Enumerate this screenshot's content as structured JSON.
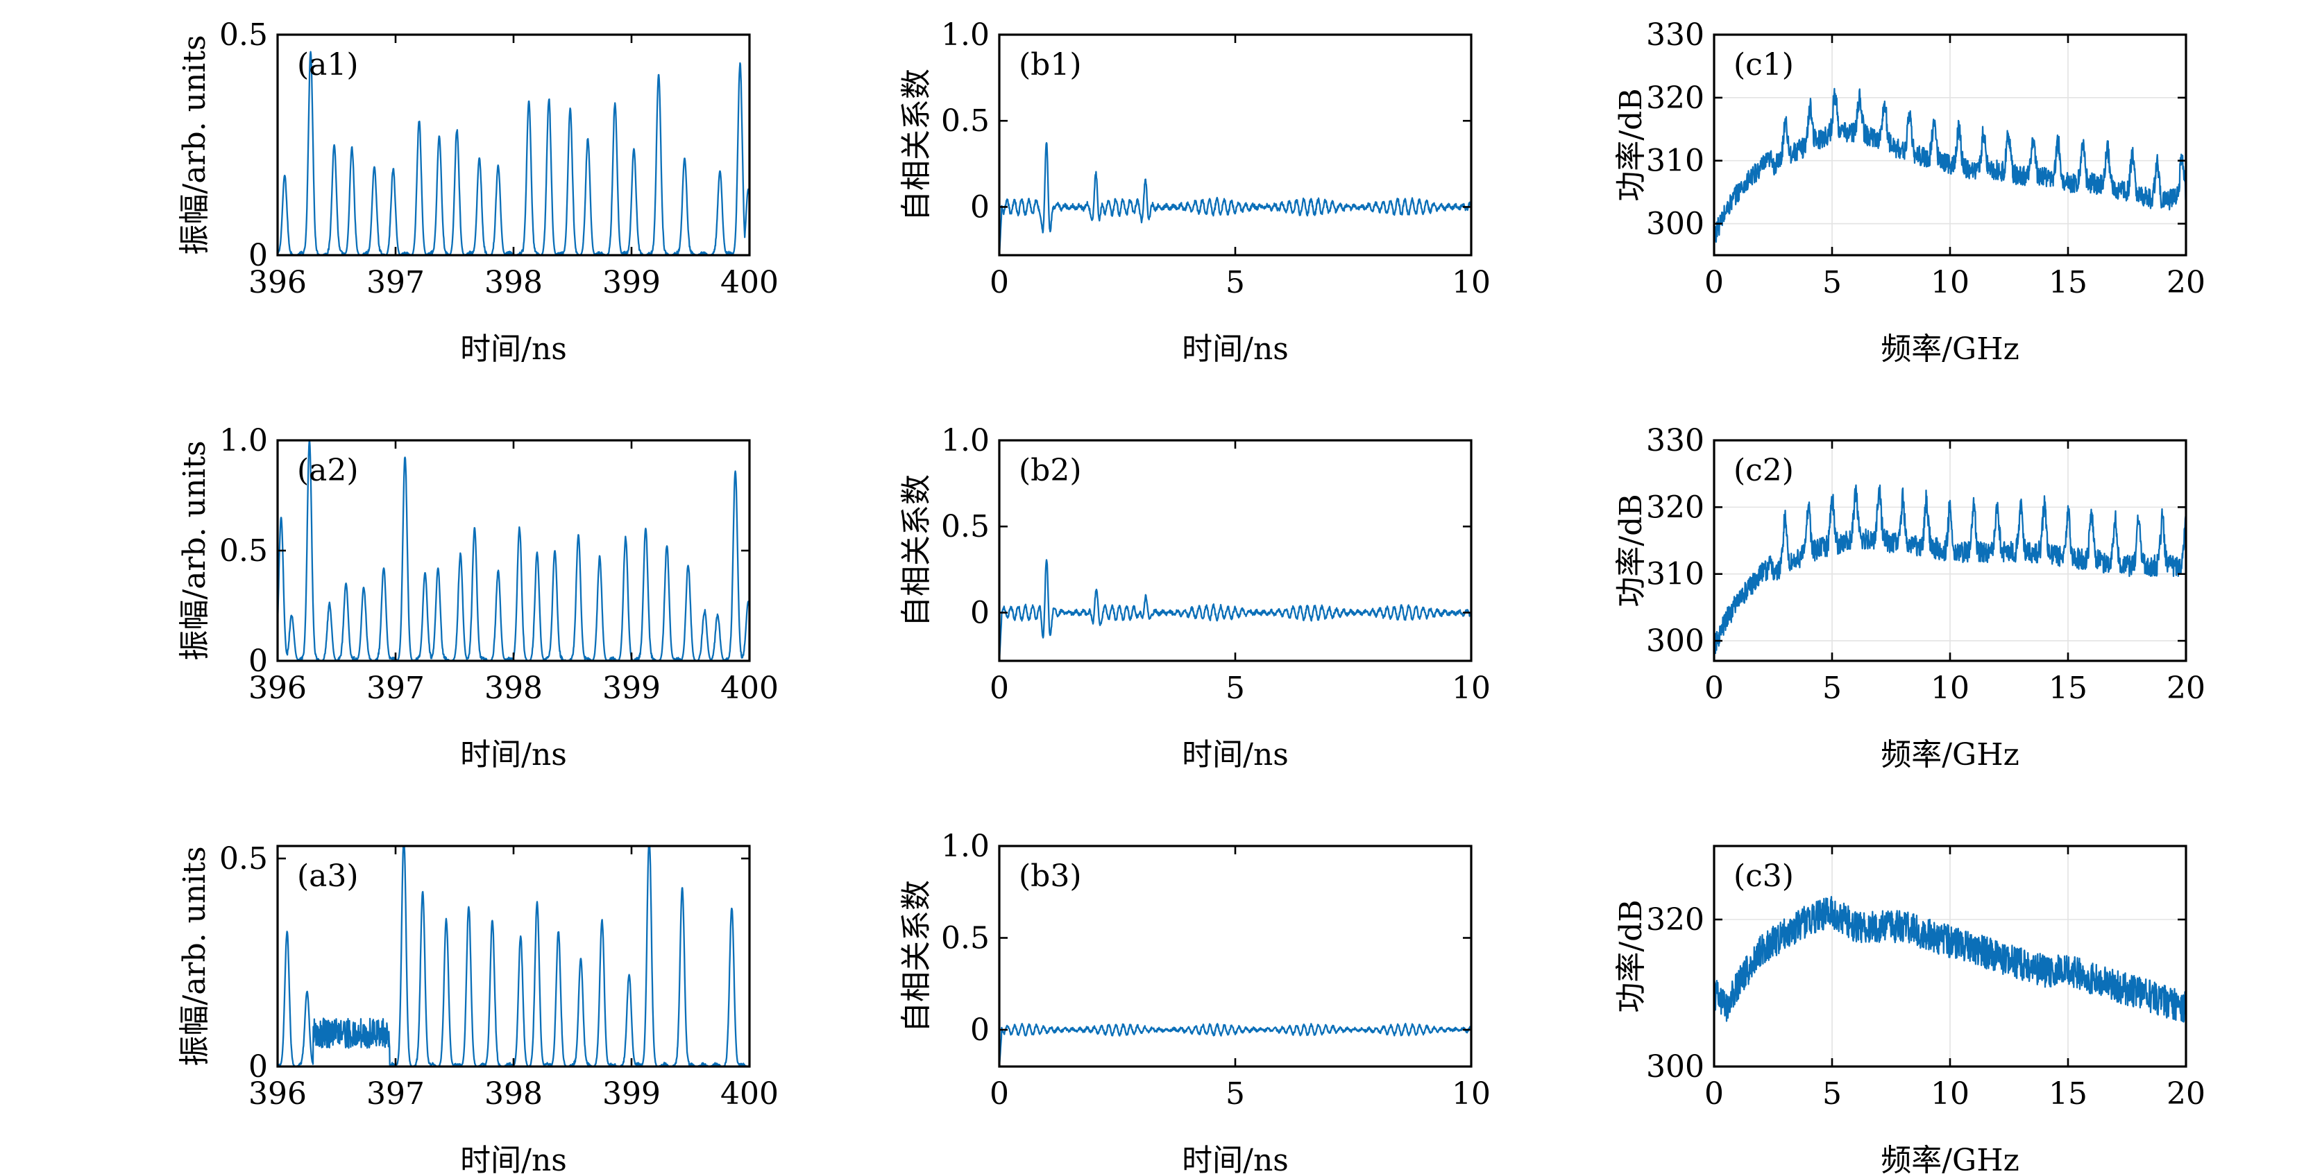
{
  "colors": {
    "trace": "#0b6fb8",
    "frame": "#000000",
    "grid": "#e3e3e3"
  },
  "chart_data": [
    {
      "id": "a1",
      "type": "line",
      "label": "(a1)",
      "xlabel": "时间/ns",
      "ylabel": "振幅/arb. units",
      "xlim": [
        396,
        400
      ],
      "ylim": [
        0,
        0.5
      ],
      "xticks": [
        "396",
        "397",
        "398",
        "399",
        "400"
      ],
      "yticks": [
        "0",
        "0.5"
      ],
      "grid": false,
      "trace_kind": "pulses",
      "series": [
        {
          "peaks_x": [
            396.06,
            396.28,
            396.48,
            396.63,
            396.82,
            396.98,
            397.2,
            397.37,
            397.52,
            397.71,
            397.87,
            398.13,
            398.3,
            398.48,
            398.63,
            398.86,
            399.02,
            399.23,
            399.45,
            399.75,
            399.92,
            399.99
          ],
          "peaks_y": [
            0.18,
            0.46,
            0.25,
            0.24,
            0.2,
            0.19,
            0.3,
            0.27,
            0.28,
            0.22,
            0.2,
            0.35,
            0.35,
            0.33,
            0.26,
            0.34,
            0.24,
            0.41,
            0.22,
            0.19,
            0.43,
            0.15
          ]
        }
      ]
    },
    {
      "id": "b1",
      "type": "line",
      "label": "(b1)",
      "xlabel": "时间/ns",
      "ylabel": "自相关系数",
      "xlim": [
        0,
        10
      ],
      "ylim": [
        -0.28,
        1.0
      ],
      "xticks": [
        "0",
        "5",
        "10"
      ],
      "yticks": [
        "0",
        "0.5",
        "1.0"
      ],
      "grid": false,
      "trace_kind": "autocorrelation",
      "series": [
        {
          "peaks_x": [
            1.0,
            2.05,
            3.1
          ],
          "peaks_y": [
            0.4,
            0.2,
            0.14
          ],
          "noise_level": 0.045
        }
      ]
    },
    {
      "id": "c1",
      "type": "line",
      "label": "(c1)",
      "xlabel": "频率/GHz",
      "ylabel": "功率/dB",
      "xlim": [
        0,
        20
      ],
      "ylim": [
        295,
        330
      ],
      "xticks": [
        "0",
        "5",
        "10",
        "15",
        "20"
      ],
      "yticks": [
        "300",
        "310",
        "320",
        "330"
      ],
      "grid": true,
      "trace_kind": "spectrum",
      "series": [
        {
          "envelope_x": [
            0,
            0.5,
            1,
            2,
            3,
            4,
            5,
            6,
            7,
            8,
            9,
            10,
            11,
            12,
            13,
            14,
            15,
            16,
            17,
            18,
            19,
            20
          ],
          "envelope_y": [
            298,
            302,
            305,
            309,
            312,
            314,
            316,
            316,
            315,
            313,
            312,
            311,
            310,
            310,
            309,
            309,
            308,
            308,
            307,
            306,
            305,
            306
          ],
          "peak_spacing": 1.05,
          "peak_height": 6,
          "start": 2.5
        }
      ]
    },
    {
      "id": "a2",
      "type": "line",
      "label": "(a2)",
      "xlabel": "时间/ns",
      "ylabel": "振幅/arb. units",
      "xlim": [
        396,
        400
      ],
      "ylim": [
        0,
        1.0
      ],
      "xticks": [
        "396",
        "397",
        "398",
        "399",
        "400"
      ],
      "yticks": [
        "0",
        "0.5",
        "1.0"
      ],
      "grid": false,
      "trace_kind": "pulses",
      "series": [
        {
          "peaks_x": [
            396.03,
            396.12,
            396.27,
            396.44,
            396.58,
            396.73,
            396.9,
            397.08,
            397.25,
            397.36,
            397.55,
            397.67,
            397.87,
            398.05,
            398.2,
            398.35,
            398.55,
            398.73,
            398.95,
            399.12,
            399.3,
            399.48,
            399.62,
            399.73,
            399.88,
            399.99
          ],
          "peaks_y": [
            0.65,
            0.2,
            1.0,
            0.25,
            0.35,
            0.33,
            0.42,
            0.92,
            0.4,
            0.42,
            0.48,
            0.6,
            0.4,
            0.6,
            0.48,
            0.5,
            0.57,
            0.46,
            0.55,
            0.6,
            0.52,
            0.43,
            0.22,
            0.2,
            0.86,
            0.27
          ]
        }
      ]
    },
    {
      "id": "b2",
      "type": "line",
      "label": "(b2)",
      "xlabel": "时间/ns",
      "ylabel": "自相关系数",
      "xlim": [
        0,
        10
      ],
      "ylim": [
        -0.28,
        1.0
      ],
      "xticks": [
        "0",
        "5",
        "10"
      ],
      "yticks": [
        "0",
        "0.5",
        "1.0"
      ],
      "grid": false,
      "trace_kind": "autocorrelation",
      "series": [
        {
          "peaks_x": [
            1.0,
            2.05,
            3.1
          ],
          "peaks_y": [
            0.29,
            0.13,
            0.11
          ],
          "noise_level": 0.04
        }
      ]
    },
    {
      "id": "c2",
      "type": "line",
      "label": "(c2)",
      "xlabel": "频率/GHz",
      "ylabel": "功率/dB",
      "xlim": [
        0,
        20
      ],
      "ylim": [
        297,
        330
      ],
      "xticks": [
        "0",
        "5",
        "10",
        "15",
        "20"
      ],
      "yticks": [
        "300",
        "310",
        "320",
        "330"
      ],
      "grid": true,
      "trace_kind": "spectrum",
      "series": [
        {
          "envelope_x": [
            0,
            0.5,
            1,
            2,
            3,
            4,
            5,
            6,
            7,
            8,
            9,
            10,
            11,
            12,
            13,
            14,
            15,
            16,
            17,
            18,
            19,
            20
          ],
          "envelope_y": [
            299,
            303,
            306,
            310,
            313,
            315,
            316,
            317,
            317,
            316,
            316,
            315,
            315,
            315,
            315,
            315,
            314,
            314,
            313,
            313,
            313,
            313
          ],
          "peak_spacing": 1.0,
          "peak_height": 7,
          "start": 2.5
        }
      ]
    },
    {
      "id": "a3",
      "type": "line",
      "label": "(a3)",
      "xlabel": "时间/ns",
      "ylabel": "振幅/arb. units",
      "xlim": [
        396,
        400
      ],
      "ylim": [
        0,
        0.53
      ],
      "xticks": [
        "396",
        "397",
        "398",
        "399",
        "400"
      ],
      "yticks": [
        "0",
        "0.5"
      ],
      "grid": false,
      "trace_kind": "pulses_band",
      "series": [
        {
          "peaks_x": [
            396.08,
            396.25,
            397.07,
            397.23,
            397.43,
            397.62,
            397.82,
            398.06,
            398.2,
            398.38,
            398.57,
            398.75,
            398.98,
            399.15,
            399.43,
            399.85
          ],
          "peaks_y": [
            0.32,
            0.18,
            0.55,
            0.42,
            0.35,
            0.38,
            0.35,
            0.31,
            0.39,
            0.32,
            0.26,
            0.35,
            0.22,
            0.55,
            0.43,
            0.38
          ],
          "band_x": [
            396.3,
            396.95
          ],
          "band_level": 0.08
        }
      ]
    },
    {
      "id": "b3",
      "type": "line",
      "label": "(b3)",
      "xlabel": "时间/ns",
      "ylabel": "自相关系数",
      "xlim": [
        0,
        10
      ],
      "ylim": [
        -0.2,
        1.0
      ],
      "xticks": [
        "0",
        "5",
        "10"
      ],
      "yticks": [
        "0",
        "0.5",
        "1.0"
      ],
      "grid": false,
      "trace_kind": "autocorrelation",
      "series": [
        {
          "peaks_x": [],
          "peaks_y": [],
          "noise_level": 0.028
        }
      ]
    },
    {
      "id": "c3",
      "type": "line",
      "label": "(c3)",
      "xlabel": "频率/GHz",
      "ylabel": "功率/dB",
      "xlim": [
        0,
        20
      ],
      "ylim": [
        300,
        330
      ],
      "xticks": [
        "0",
        "5",
        "10",
        "15",
        "20"
      ],
      "yticks": [
        "300",
        "320"
      ],
      "grid": true,
      "trace_kind": "spectrum_smooth",
      "series": [
        {
          "envelope_x": [
            0,
            0.5,
            1,
            2,
            3,
            4,
            5,
            6,
            7,
            8,
            9,
            10,
            11,
            12,
            13,
            14,
            15,
            16,
            17,
            18,
            19,
            20
          ],
          "envelope_y": [
            310,
            308,
            311,
            316,
            318,
            320,
            321,
            319,
            319,
            319,
            318,
            317,
            316,
            315,
            314,
            313,
            313,
            312,
            311,
            310,
            309,
            308
          ],
          "peak_spacing": 0,
          "peak_height": 0,
          "start": 0
        }
      ]
    }
  ]
}
